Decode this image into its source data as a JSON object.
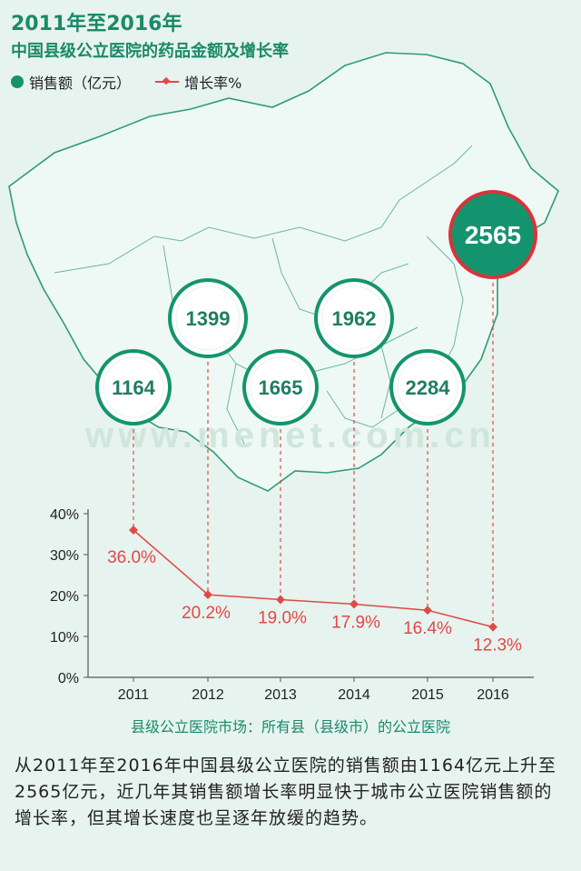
{
  "header": {
    "title": "2011年至2016年",
    "subtitle": "中国县级公立医院的药品金额及增长率"
  },
  "legend": {
    "sales_label": "销售额（亿元）",
    "growth_label": "增长率%"
  },
  "watermark": {
    "text": "www.menet.com.cn"
  },
  "colors": {
    "accent": "#1b8a68",
    "bubble_fill": "#14946e",
    "growth_line": "#e24848",
    "highlight_ring": "#d9333b"
  },
  "chart_data": {
    "type": "line",
    "categories": [
      "2011",
      "2012",
      "2013",
      "2014",
      "2015",
      "2016"
    ],
    "series": [
      {
        "name": "销售额（亿元）",
        "display": "bubbles",
        "values": [
          1164,
          1399,
          1665,
          1962,
          2284,
          2565
        ]
      },
      {
        "name": "增长率%",
        "display": "line",
        "values": [
          36.0,
          20.2,
          19.0,
          17.9,
          16.4,
          12.3
        ],
        "labels": [
          "36.0%",
          "20.2%",
          "19.0%",
          "17.9%",
          "16.4%",
          "12.3%"
        ]
      }
    ],
    "y_ticks": [
      "40%",
      "30%",
      "20%",
      "10%",
      "0%"
    ],
    "ylim": [
      0,
      40
    ],
    "grid": false,
    "legend": "top-left",
    "highlight": "2016"
  },
  "footer": {
    "caption": "县级公立医院市场：所有县（县级市）的公立医院",
    "summary": "从2011年至2016年中国县级公立医院的销售额由1164亿元上升至2565亿元，近几年其销售额增长率明显快于城市公立医院销售额的增长率，但其增长速度也呈逐年放缓的趋势。"
  }
}
